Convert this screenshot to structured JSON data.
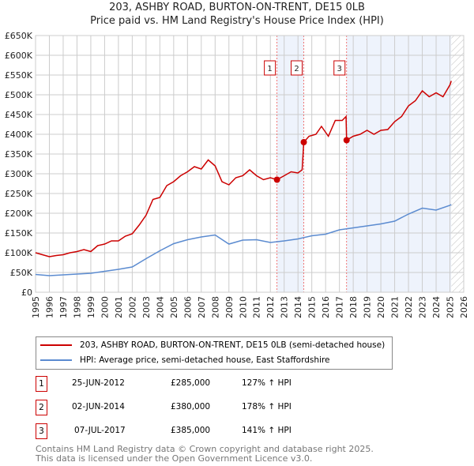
{
  "chart_data": {
    "type": "line",
    "title": "203, ASHBY ROAD, BURTON-ON-TRENT, DE15 0LB",
    "subtitle": "Price paid vs. HM Land Registry's House Price Index (HPI)",
    "xlim": [
      1995,
      2026
    ],
    "ylim": [
      0,
      650000
    ],
    "x_ticks": [
      "1995",
      "1996",
      "1997",
      "1998",
      "1999",
      "2000",
      "2001",
      "2002",
      "2003",
      "2004",
      "2005",
      "2006",
      "2007",
      "2008",
      "2009",
      "2010",
      "2011",
      "2012",
      "2013",
      "2014",
      "2015",
      "2016",
      "2017",
      "2018",
      "2019",
      "2020",
      "2021",
      "2022",
      "2023",
      "2024",
      "2025",
      "2026"
    ],
    "y_ticks": [
      "£0",
      "£50K",
      "£100K",
      "£150K",
      "£200K",
      "£250K",
      "£300K",
      "£350K",
      "£400K",
      "£450K",
      "£500K",
      "£550K",
      "£600K",
      "£650K"
    ],
    "grid": true,
    "series": [
      {
        "name": "203, ASHBY ROAD, BURTON-ON-TRENT, DE15 0LB (semi-detached house)",
        "color": "#cc0000",
        "x": [
          1995,
          1995.5,
          1996,
          1996.5,
          1997,
          1997.5,
          1998,
          1998.5,
          1999,
          1999.5,
          2000,
          2000.5,
          2001,
          2001.5,
          2002,
          2002.5,
          2003,
          2003.5,
          2004,
          2004.5,
          2005,
          2005.5,
          2006,
          2006.5,
          2007,
          2007.5,
          2008,
          2008.5,
          2009,
          2009.5,
          2010,
          2010.5,
          2011,
          2011.5,
          2012,
          2012.48,
          2013,
          2013.5,
          2014,
          2014.3,
          2014.42,
          2014.8,
          2015.3,
          2015.7,
          2016.2,
          2016.7,
          2017.2,
          2017.48,
          2017.52,
          2018,
          2018.5,
          2019,
          2019.5,
          2020,
          2020.5,
          2021,
          2021.5,
          2022,
          2022.5,
          2023,
          2023.5,
          2024,
          2024.5,
          2025,
          2025.1
        ],
        "y": [
          100000,
          95000,
          90000,
          93000,
          95000,
          100000,
          103000,
          108000,
          103000,
          118000,
          122000,
          130000,
          130000,
          142000,
          148000,
          170000,
          195000,
          235000,
          240000,
          270000,
          280000,
          295000,
          305000,
          318000,
          312000,
          335000,
          320000,
          280000,
          272000,
          290000,
          295000,
          310000,
          295000,
          285000,
          290000,
          285000,
          295000,
          305000,
          302000,
          310000,
          380000,
          395000,
          400000,
          420000,
          395000,
          435000,
          435000,
          445000,
          385000,
          395000,
          400000,
          410000,
          400000,
          410000,
          412000,
          432000,
          445000,
          472000,
          485000,
          510000,
          495000,
          505000,
          495000,
          525000,
          535000
        ]
      },
      {
        "name": "HPI: Average price, semi-detached house, East Staffordshire",
        "color": "#5b8bd0",
        "x": [
          1995,
          1996,
          1997,
          1998,
          1999,
          2000,
          2001,
          2002,
          2003,
          2004,
          2005,
          2006,
          2007,
          2008,
          2009,
          2010,
          2011,
          2012,
          2013,
          2014,
          2015,
          2016,
          2017,
          2018,
          2019,
          2020,
          2021,
          2022,
          2023,
          2024,
          2025,
          2025.1
        ],
        "y": [
          45000,
          42000,
          44000,
          46000,
          48000,
          53000,
          58000,
          64000,
          85000,
          105000,
          123000,
          133000,
          140000,
          145000,
          122000,
          132000,
          133000,
          126000,
          130000,
          135000,
          143000,
          147000,
          158000,
          163000,
          168000,
          173000,
          180000,
          198000,
          213000,
          208000,
          220000,
          222000
        ]
      }
    ],
    "sales": [
      {
        "label": "1",
        "x": 2012.48,
        "y": 285000
      },
      {
        "label": "2",
        "x": 2014.42,
        "y": 380000
      },
      {
        "label": "3",
        "x": 2017.52,
        "y": 385000
      }
    ]
  },
  "legend": {
    "property": "203, ASHBY ROAD, BURTON-ON-TRENT, DE15 0LB (semi-detached house)",
    "hpi": "HPI: Average price, semi-detached house, East Staffordshire"
  },
  "transactions": [
    {
      "num": "1",
      "date": "25-JUN-2012",
      "price": "£285,000",
      "hpi": "127% ↑ HPI"
    },
    {
      "num": "2",
      "date": "02-JUN-2014",
      "price": "£380,000",
      "hpi": "178% ↑ HPI"
    },
    {
      "num": "3",
      "date": "07-JUL-2017",
      "price": "£385,000",
      "hpi": "141% ↑ HPI"
    }
  ],
  "footer": {
    "line1": "Contains HM Land Registry data © Crown copyright and database right 2025.",
    "line2": "This data is licensed under the Open Government Licence v3.0."
  }
}
